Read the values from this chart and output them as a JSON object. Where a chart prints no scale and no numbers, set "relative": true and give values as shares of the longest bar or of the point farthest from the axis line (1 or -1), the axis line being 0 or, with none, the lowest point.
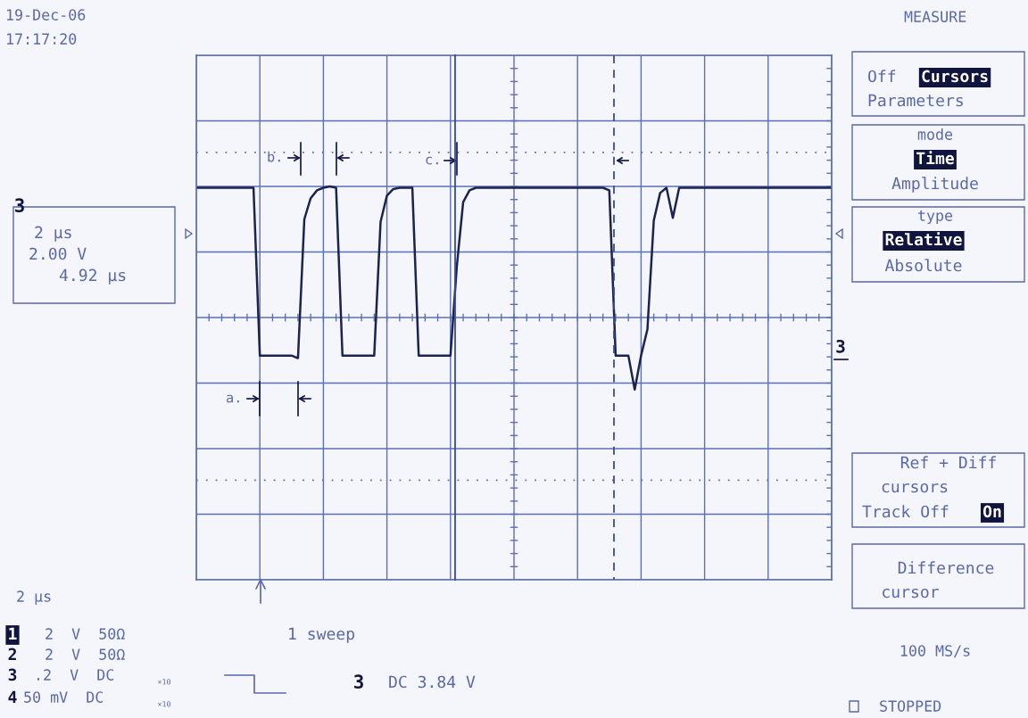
{
  "chart_data": {
    "type": "line",
    "relative": true,
    "categories": [
      null,
      null,
      null,
      null,
      null,
      null,
      null,
      null,
      null,
      null,
      null,
      null,
      null,
      null,
      null,
      null,
      null,
      null,
      null,
      null,
      null,
      null,
      null,
      null,
      null,
      null,
      null,
      null,
      null,
      null,
      null,
      null,
      null,
      null,
      null,
      null,
      null,
      null,
      null,
      null,
      null,
      null,
      null,
      null,
      null,
      null,
      null,
      null,
      null,
      null,
      null,
      null,
      null,
      null,
      null,
      null,
      null,
      null,
      null,
      null,
      null,
      null,
      null,
      null,
      null,
      null,
      null,
      null,
      null,
      null,
      null,
      null,
      null,
      null,
      null,
      null,
      null,
      null,
      null,
      null,
      null,
      null,
      null,
      null,
      null,
      null,
      null,
      null,
      null,
      null,
      null,
      null,
      null,
      null,
      null,
      null,
      null,
      null,
      null,
      null,
      null
    ],
    "series": [
      {
        "color": "#1c2350",
        "values": [
          0.99,
          0.99,
          0.99,
          0.99,
          0.99,
          0.99,
          0.99,
          0.99,
          0.99,
          0.99,
          -0.29,
          -0.29,
          -0.29,
          -0.29,
          -0.29,
          -0.29,
          -0.31,
          0.75,
          0.91,
          0.97,
          0.99,
          1.0,
          0.99,
          -0.29,
          -0.29,
          -0.29,
          -0.29,
          -0.29,
          -0.29,
          0.73,
          0.93,
          0.98,
          0.99,
          0.99,
          0.99,
          -0.29,
          -0.29,
          -0.29,
          -0.29,
          -0.29,
          -0.29,
          0.39,
          0.88,
          0.97,
          0.99,
          0.99,
          0.99,
          0.99,
          0.99,
          0.99,
          0.99,
          0.99,
          0.99,
          0.99,
          0.99,
          0.99,
          0.99,
          0.99,
          0.99,
          0.99,
          0.99,
          0.99,
          0.99,
          0.99,
          0.99,
          0.97,
          -0.29,
          -0.29,
          -0.29,
          -0.55,
          -0.29,
          -0.09,
          0.74,
          0.95,
          0.99,
          0.76,
          0.99,
          0.99,
          0.99,
          0.99,
          0.99,
          0.99,
          0.99,
          0.99,
          0.99,
          0.99,
          0.99,
          0.99,
          0.99,
          0.99,
          0.99,
          0.99,
          0.99,
          0.99,
          0.99,
          0.99,
          0.99,
          0.99,
          0.99,
          0.99,
          0.99
        ]
      }
    ],
    "tick_labels": false,
    "grid": true,
    "ref_lines": [
      {
        "axis": "y",
        "value": 1.26,
        "line_style": "dotted",
        "color": "#5a6fb8"
      },
      {
        "axis": "y",
        "value": -1.24,
        "line_style": "dotted",
        "color": "#5a6fb8"
      }
    ],
    "annotations": [
      "19-Dec-06",
      "17:17:20",
      "MEASURE",
      "Off",
      "Cursors",
      "Parameters",
      "mode",
      "Time",
      "Amplitude",
      "type",
      "Relative",
      "Absolute",
      "Ref + Diff",
      "cursors",
      "Track Off",
      "On",
      "Difference",
      "cursor",
      "100 MS/s",
      "STOPPED",
      "3",
      "2 µs",
      "2.00 V",
      "4.92 µs",
      "2 µs",
      "1",
      "2  V  50Ω",
      "2",
      "2  V  50Ω",
      "3",
      ".2  V  DC",
      "×10",
      "4",
      "50 mV  DC",
      "×10",
      "1 sweep",
      "3",
      "DC 3.84 V",
      "3",
      "a.",
      "b.",
      "c."
    ]
  }
}
